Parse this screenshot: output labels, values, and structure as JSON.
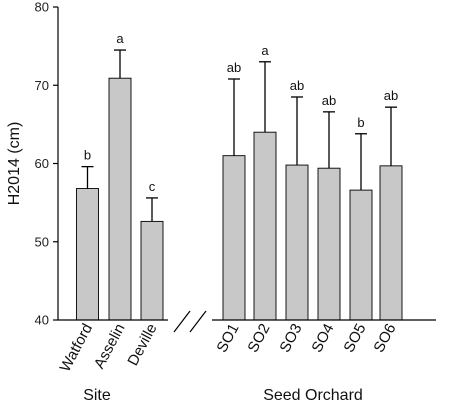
{
  "chart_data": {
    "type": "bar",
    "title": "",
    "xlabel": "",
    "ylabel": "H2014 (cm)",
    "ylim": [
      40,
      80
    ],
    "yticks": [
      40,
      50,
      60,
      70,
      80
    ],
    "grid": false,
    "axis_break_between": [
      "Deville",
      "SO1"
    ],
    "groups": [
      {
        "label": "Site",
        "categories": [
          "Watford",
          "Asselin",
          "Deville"
        ]
      },
      {
        "label": "Seed Orchard",
        "categories": [
          "SO1",
          "SO2",
          "SO3",
          "SO4",
          "SO5",
          "SO6"
        ]
      }
    ],
    "categories": [
      "Watford",
      "Asselin",
      "Deville",
      "SO1",
      "SO2",
      "SO3",
      "SO4",
      "SO5",
      "SO6"
    ],
    "values": [
      56.8,
      70.9,
      52.6,
      61.0,
      64.0,
      59.8,
      59.4,
      56.6,
      59.7
    ],
    "error_upper": [
      2.8,
      3.6,
      3.0,
      9.8,
      9.0,
      8.7,
      7.2,
      7.2,
      7.5
    ],
    "letters": [
      "b",
      "a",
      "c",
      "ab",
      "a",
      "ab",
      "ab",
      "b",
      "ab"
    ],
    "bar_color": "#c8c8c8"
  }
}
